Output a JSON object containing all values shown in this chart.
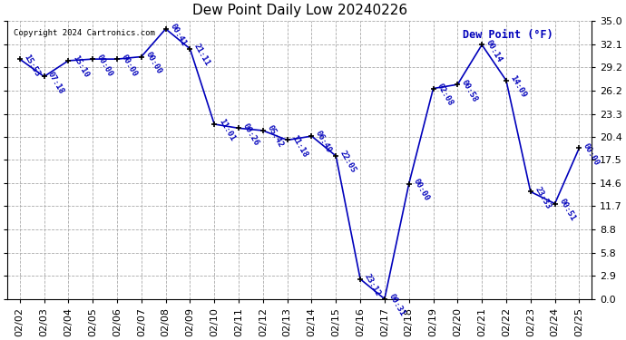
{
  "title": "Dew Point Daily Low 20240226",
  "ylabel_text": "Dew Point (°F)",
  "copyright": "Copyright 2024 Cartronics.com",
  "dates": [
    "02/02",
    "02/03",
    "02/04",
    "02/05",
    "02/06",
    "02/07",
    "02/08",
    "02/09",
    "02/10",
    "02/11",
    "02/12",
    "02/13",
    "02/14",
    "02/15",
    "02/16",
    "02/17",
    "02/18",
    "02/19",
    "02/20",
    "02/21",
    "02/22",
    "02/23",
    "02/24",
    "02/25"
  ],
  "values": [
    30.2,
    28.0,
    30.0,
    30.2,
    30.2,
    30.5,
    34.0,
    31.5,
    22.0,
    21.5,
    21.2,
    20.0,
    20.5,
    18.0,
    2.5,
    0.0,
    14.5,
    26.5,
    27.0,
    32.0,
    27.5,
    13.5,
    12.0,
    19.0
  ],
  "times": [
    "15:53",
    "07:18",
    "15:10",
    "00:00",
    "00:00",
    "00:00",
    "00:41",
    "21:11",
    "11:01",
    "00:26",
    "05:42",
    "11:18",
    "06:49",
    "22:05",
    "23:12",
    "00:31",
    "00:00",
    "02:08",
    "00:58",
    "00:14",
    "14:09",
    "23:33",
    "00:51",
    "00:00"
  ],
  "ylim": [
    0.0,
    35.0
  ],
  "yticks": [
    0.0,
    2.9,
    5.8,
    8.8,
    11.7,
    14.6,
    17.5,
    20.4,
    23.3,
    26.2,
    29.2,
    32.1,
    35.0
  ],
  "ytick_labels": [
    "0.0",
    "2.9",
    "5.8",
    "8.8",
    "11.7",
    "14.6",
    "17.5",
    "20.4",
    "23.3",
    "26.2",
    "29.2",
    "32.1",
    "35.0"
  ],
  "line_color": "#0000bb",
  "marker_color": "#000000",
  "grid_color": "#aaaaaa",
  "bg_color": "#ffffff",
  "title_color": "#000000",
  "label_color": "#0000bb",
  "copyright_color": "#000000",
  "annotation_rotation": -60,
  "annotation_fontsize": 6.5,
  "tick_fontsize": 8.0,
  "title_fontsize": 11
}
